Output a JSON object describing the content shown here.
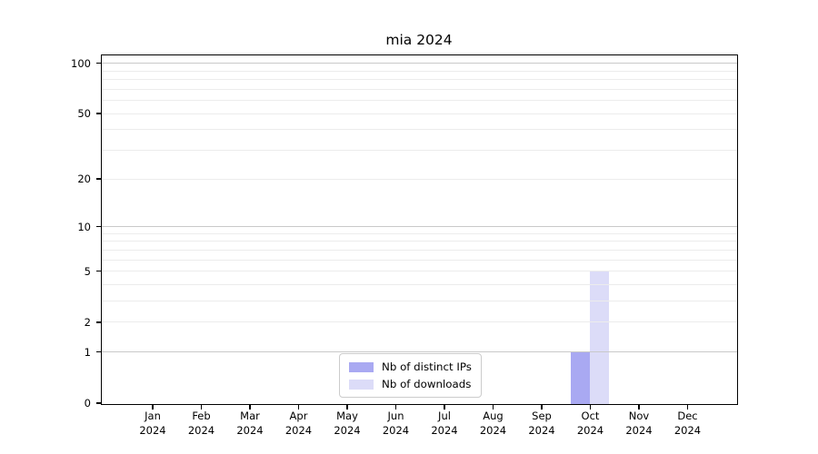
{
  "chart_data": {
    "type": "bar",
    "title": "mia 2024",
    "categories": [
      "Jan",
      "Feb",
      "Mar",
      "Apr",
      "May",
      "Jun",
      "Jul",
      "Aug",
      "Sep",
      "Oct",
      "Nov",
      "Dec"
    ],
    "category_year": "2024",
    "series": [
      {
        "name": "Nb of distinct IPs",
        "color": "#a9a9f2",
        "values": [
          0,
          0,
          0,
          0,
          0,
          0,
          0,
          0,
          0,
          1,
          0,
          0
        ]
      },
      {
        "name": "Nb of downloads",
        "color": "#dcdcf8",
        "values": [
          0,
          0,
          0,
          0,
          0,
          0,
          0,
          0,
          0,
          5,
          0,
          0
        ]
      }
    ],
    "y_axis": {
      "scale": "log1p",
      "tick_labels": [
        0,
        1,
        2,
        5,
        10,
        20,
        50,
        100
      ],
      "major_gridlines": [
        1,
        10,
        100
      ],
      "minor_gridlines": [
        2,
        3,
        4,
        5,
        6,
        7,
        8,
        9,
        20,
        30,
        40,
        50,
        60,
        70,
        80,
        90
      ],
      "ylim": [
        0,
        111
      ],
      "grid": "on"
    },
    "x_axis": {
      "label": "",
      "grid": "off"
    },
    "legend": {
      "position": "lower center"
    },
    "colors": {
      "major_grid": "#c9c9c9",
      "minor_grid": "#ececec",
      "spine": "#000000",
      "legend_border": "#cccccc",
      "background": "#ffffff"
    }
  }
}
